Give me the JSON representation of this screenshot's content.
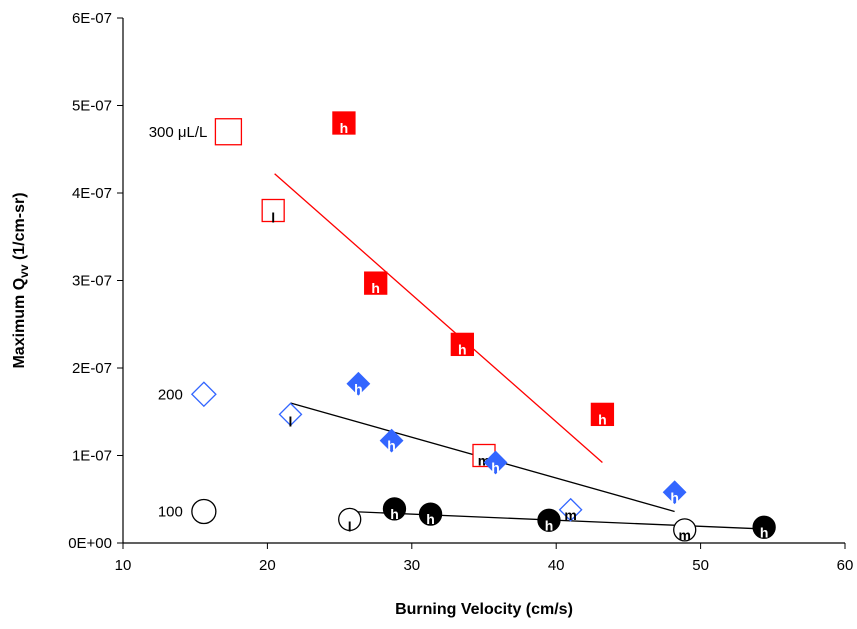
{
  "chart_data": {
    "type": "scatter",
    "title": "",
    "xlabel": "Burning Velocity (cm/s)",
    "ylabel_main": "Maximum Q",
    "ylabel_sub": "vv",
    "ylabel_unit": " (1/cm-sr)",
    "xlim": [
      10,
      60
    ],
    "ylim": [
      0,
      6e-07
    ],
    "x_ticks": [
      10,
      20,
      30,
      40,
      50,
      60
    ],
    "x_tick_labels": [
      "10",
      "20",
      "30",
      "40",
      "50",
      "60"
    ],
    "y_ticks": [
      0,
      1e-07,
      2e-07,
      3e-07,
      4e-07,
      5e-07,
      6e-07
    ],
    "y_tick_labels": [
      "0E+00",
      "1E-07",
      "2E-07",
      "3E-07",
      "4E-07",
      "5E-07",
      "6E-07"
    ],
    "grid": false,
    "series": [
      {
        "name": "300",
        "label_text": "300 μL/L",
        "marker": "square",
        "color": "#ff0000",
        "label_point": {
          "x": 17.3,
          "y": 4.7e-07
        },
        "points": [
          {
            "x": 20.4,
            "y": 3.8e-07,
            "letter": "l",
            "filled": false
          },
          {
            "x": 25.3,
            "y": 4.8e-07,
            "letter": "h",
            "filled": true
          },
          {
            "x": 27.5,
            "y": 2.97e-07,
            "letter": "h",
            "filled": true
          },
          {
            "x": 33.5,
            "y": 2.27e-07,
            "letter": "h",
            "filled": true
          },
          {
            "x": 35.0,
            "y": 1e-07,
            "letter": "m",
            "filled": false
          },
          {
            "x": 43.2,
            "y": 1.47e-07,
            "letter": "h",
            "filled": true
          }
        ],
        "fit": {
          "x1": 20.5,
          "y1": 4.22e-07,
          "x2": 43.2,
          "y2": 9.2e-08
        }
      },
      {
        "name": "200",
        "label_text": "200",
        "marker": "diamond",
        "color": "#3366ff",
        "label_point": {
          "x": 15.6,
          "y": 1.7e-07
        },
        "points": [
          {
            "x": 21.6,
            "y": 1.47e-07,
            "letter": "l",
            "filled": false
          },
          {
            "x": 26.3,
            "y": 1.82e-07,
            "letter": "h",
            "filled": true
          },
          {
            "x": 28.6,
            "y": 1.17e-07,
            "letter": "h",
            "filled": true
          },
          {
            "x": 35.8,
            "y": 9.2e-08,
            "letter": "h",
            "filled": true
          },
          {
            "x": 41.0,
            "y": 3.8e-08,
            "letter": "m",
            "filled": false
          },
          {
            "x": 48.2,
            "y": 5.8e-08,
            "letter": "h",
            "filled": true
          }
        ],
        "fit": {
          "x1": 21.6,
          "y1": 1.6e-07,
          "x2": 48.2,
          "y2": 3.6e-08
        }
      },
      {
        "name": "100",
        "label_text": "100",
        "marker": "circle",
        "color": "#000000",
        "label_point": {
          "x": 15.6,
          "y": 3.6e-08
        },
        "points": [
          {
            "x": 25.7,
            "y": 2.7e-08,
            "letter": "l",
            "filled": false
          },
          {
            "x": 28.8,
            "y": 3.9e-08,
            "letter": "h",
            "filled": true
          },
          {
            "x": 31.3,
            "y": 3.3e-08,
            "letter": "h",
            "filled": true
          },
          {
            "x": 39.5,
            "y": 2.6e-08,
            "letter": "h",
            "filled": true
          },
          {
            "x": 48.9,
            "y": 1.5e-08,
            "letter": "m",
            "filled": false
          },
          {
            "x": 54.4,
            "y": 1.8e-08,
            "letter": "h",
            "filled": true
          }
        ],
        "fit": {
          "x1": 25.7,
          "y1": 3.6e-08,
          "x2": 54.4,
          "y2": 1.6e-08
        }
      }
    ]
  }
}
